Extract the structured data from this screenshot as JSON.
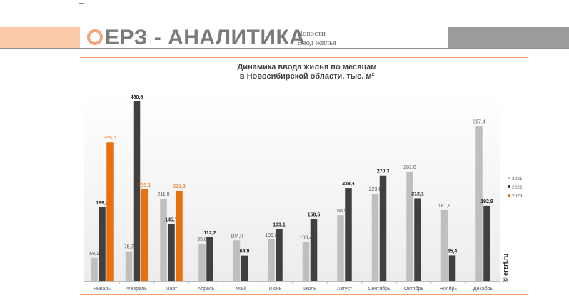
{
  "header": {
    "logo": "ЕРЗ - АНАЛИТИКА",
    "nav": [
      "Новости",
      "Ввод жилья"
    ]
  },
  "watermark": "© erzrf.ru",
  "colors": {
    "2021": "#bfbfbf",
    "2022": "#404040",
    "2023": "#e8700f",
    "accent": "#f2a36c"
  },
  "chart_data": {
    "type": "bar",
    "title": "Динамика ввода жилья по месяцам\nв Новосибирской области, тыс. м²",
    "title_lines": [
      "Динамика ввода жилья по месяцам",
      "в Новосибирской области, тыс. м²"
    ],
    "categories": [
      "Январь",
      "Февраль",
      "Март",
      "Апрель",
      "Май",
      "Июнь",
      "Июль",
      "Август",
      "Сентябрь",
      "Октябрь",
      "Ноябрь",
      "Декабрь"
    ],
    "series": [
      {
        "name": "2021",
        "values": [
          59.1,
          75.7,
          211.0,
          95.0,
          104.0,
          106.8,
          100.4,
          168.5,
          223.8,
          281.0,
          181.9,
          397.4
        ]
      },
      {
        "name": "2022",
        "values": [
          189.4,
          460.6,
          145.7,
          112.2,
          64.9,
          133.1,
          158.5,
          238.4,
          270.3,
          212.1,
          65.4,
          192.9
        ]
      },
      {
        "name": "2023",
        "values": [
          355.6,
          235.1,
          231.3,
          null,
          null,
          null,
          null,
          null,
          null,
          null,
          null,
          null
        ]
      }
    ],
    "ylim": [
      0,
      460.6
    ],
    "grid": false,
    "legend": "right"
  }
}
